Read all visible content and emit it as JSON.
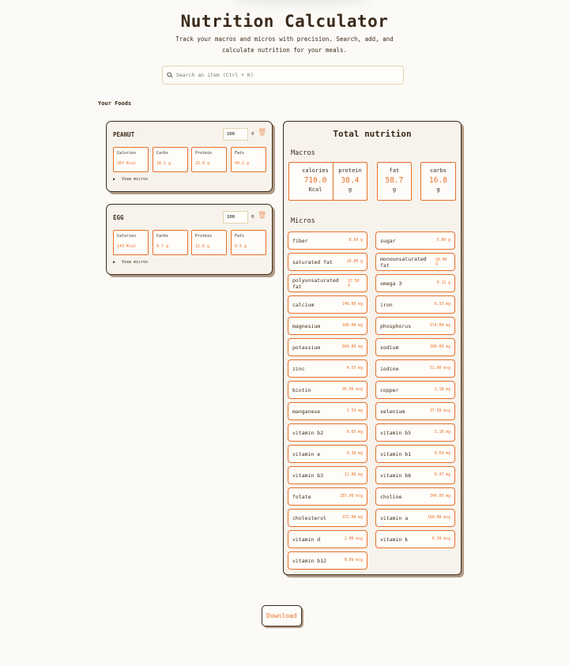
{
  "header": {
    "title": "Nutrition Calculator",
    "subtitle": "Track your macros and micros with precision. Search, add, and calculate nutrition for your meals."
  },
  "search": {
    "placeholder": "Search an item (Ctrl + K)",
    "icon": "search-icon"
  },
  "foods_label": "Your Foods",
  "foods": [
    {
      "name": "PEANUT",
      "qty": "100",
      "unit": "g",
      "nutrients": [
        {
          "label": "Calories",
          "value": "567 Kcal"
        },
        {
          "label": "Carbs",
          "value": "16.1 g"
        },
        {
          "label": "Protein",
          "value": "25.8 g"
        },
        {
          "label": "Fats",
          "value": "49.2 g"
        }
      ],
      "view_micros": "View micros"
    },
    {
      "name": "EGG",
      "qty": "100",
      "unit": "g",
      "nutrients": [
        {
          "label": "Calories",
          "value": "143 Kcal"
        },
        {
          "label": "Carbs",
          "value": "0.7 g"
        },
        {
          "label": "Protein",
          "value": "12.6 g"
        },
        {
          "label": "Fats",
          "value": "9.5 g"
        }
      ],
      "view_micros": "View micros"
    }
  ],
  "total": {
    "title": "Total nutrition",
    "macros_label": "Macros",
    "micros_label": "Micros",
    "macros": [
      {
        "label": "calories",
        "value": "710.0",
        "unit": "Kcal"
      },
      {
        "label": "protein",
        "value": "38.4",
        "unit": "g"
      },
      {
        "label": "fat",
        "value": "58.7",
        "unit": "g"
      },
      {
        "label": "carbs",
        "value": "16.8",
        "unit": "g"
      }
    ],
    "micros": [
      {
        "label": "fiber",
        "value": "8.50 g"
      },
      {
        "label": "sugar",
        "value": "5.80 g"
      },
      {
        "label": "saturated fat",
        "value": "10.00 g"
      },
      {
        "label": "monounsaturated fat",
        "value": "28.00 g"
      },
      {
        "label": "polyunsaturated fat",
        "value": "17.50 g"
      },
      {
        "label": "omega 3",
        "value": "0.12 g"
      },
      {
        "label": "calcium",
        "value": "148.00 mg"
      },
      {
        "label": "iron",
        "value": "6.33 mg"
      },
      {
        "label": "magnesium",
        "value": "180.00 mg"
      },
      {
        "label": "phosphorus",
        "value": "574.00 mg"
      },
      {
        "label": "potassium",
        "value": "843.00 mg"
      },
      {
        "label": "sodium",
        "value": "160.00 mg"
      },
      {
        "label": "zinc",
        "value": "4.55 mg"
      },
      {
        "label": "iodine",
        "value": "51.00 mcg"
      },
      {
        "label": "biotin",
        "value": "35.00 mcg"
      },
      {
        "label": "copper",
        "value": "1.18 mg"
      },
      {
        "label": "manganese",
        "value": "1.53 mg"
      },
      {
        "label": "selenium",
        "value": "37.50 mcg"
      },
      {
        "label": "vitamin b2",
        "value": "0.65 mg"
      },
      {
        "label": "vitamin b5",
        "value": "3.10 mg"
      },
      {
        "label": "vitamin e",
        "value": "9.38 mg"
      },
      {
        "label": "vitamin b1",
        "value": "0.69 mg"
      },
      {
        "label": "vitamin b3",
        "value": "12.06 mg"
      },
      {
        "label": "vitamin b6",
        "value": "0.47 mg"
      },
      {
        "label": "folate",
        "value": "287.00 mcg"
      },
      {
        "label": "choline",
        "value": "340.00 mg"
      },
      {
        "label": "cholesterol",
        "value": "372.00 mg"
      },
      {
        "label": "vitamin a",
        "value": "160.00 mcg"
      },
      {
        "label": "vitamin d",
        "value": "2.00 mcg"
      },
      {
        "label": "vitamin k",
        "value": "0.30 mcg"
      },
      {
        "label": "vitamin b12",
        "value": "0.89 mcg"
      }
    ]
  },
  "download_label": "Download",
  "colors": {
    "accent": "#e8702a",
    "text": "#3b2a1a",
    "card": "#f7f3ec",
    "background": "#fcfaf6"
  }
}
